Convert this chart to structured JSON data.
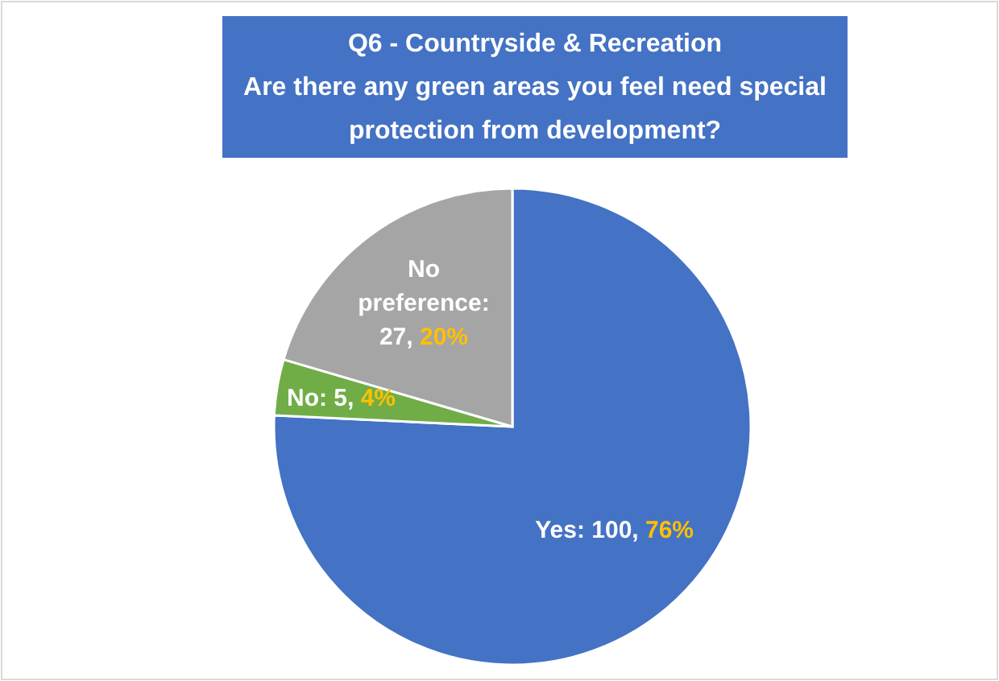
{
  "chart_data": {
    "type": "pie",
    "title": "Q6 - Countryside & Recreation\nAre there any green areas you feel need special\nprotection from development?",
    "categories": [
      "Yes",
      "No",
      "No preference"
    ],
    "values": [
      100,
      5,
      27
    ],
    "value_labels": [
      ": 100, 76%",
      ": 5, 4%",
      ": 27, 20%"
    ],
    "colors": [
      "#4472c4",
      "#70ad47",
      "#a5a5a5"
    ]
  }
}
